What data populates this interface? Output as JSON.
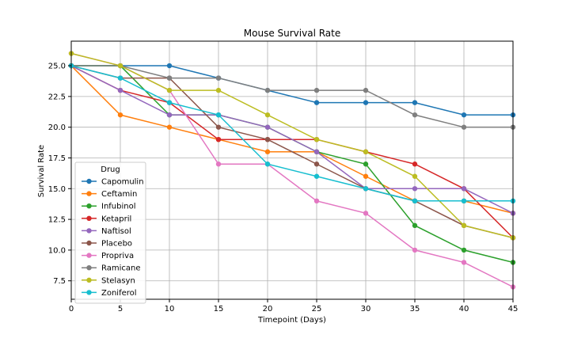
{
  "chart_data": {
    "type": "line",
    "title": "Mouse Survival Rate",
    "xlabel": "Timepoint (Days)",
    "ylabel": "Survival Rate",
    "xlim": [
      0,
      45
    ],
    "ylim": [
      6,
      27
    ],
    "x_ticks": [
      0,
      5,
      10,
      15,
      20,
      25,
      30,
      35,
      40,
      45
    ],
    "y_ticks": [
      7.5,
      10.0,
      12.5,
      15.0,
      17.5,
      20.0,
      22.5,
      25.0
    ],
    "y_tick_labels": [
      "7.5",
      "10.0",
      "12.5",
      "15.0",
      "17.5",
      "20.0",
      "22.5",
      "25.0"
    ],
    "grid": true,
    "legend_title": "Drug",
    "legend_position": "lower-left",
    "x": [
      0,
      5,
      10,
      15,
      20,
      25,
      30,
      35,
      40,
      45
    ],
    "series": [
      {
        "name": "Capomulin",
        "color": "#1f77b4",
        "values": [
          25,
          25,
          25,
          24,
          23,
          22,
          22,
          22,
          21,
          21
        ]
      },
      {
        "name": "Ceftamin",
        "color": "#ff7f0e",
        "values": [
          25,
          21,
          20,
          19,
          18,
          18,
          16,
          14,
          14,
          13
        ]
      },
      {
        "name": "Infubinol",
        "color": "#2ca02c",
        "values": [
          25,
          25,
          21,
          21,
          20,
          18,
          17,
          12,
          10,
          9
        ]
      },
      {
        "name": "Ketapril",
        "color": "#d62728",
        "values": [
          25,
          23,
          22,
          19,
          19,
          19,
          18,
          17,
          15,
          11
        ]
      },
      {
        "name": "Naftisol",
        "color": "#9467bd",
        "values": [
          25,
          23,
          21,
          21,
          20,
          18,
          15,
          15,
          15,
          13
        ]
      },
      {
        "name": "Placebo",
        "color": "#8c564b",
        "values": [
          25,
          24,
          24,
          20,
          19,
          17,
          15,
          14,
          12,
          11
        ]
      },
      {
        "name": "Propriva",
        "color": "#e377c2",
        "values": [
          26,
          25,
          23,
          17,
          17,
          14,
          13,
          10,
          9,
          7
        ]
      },
      {
        "name": "Ramicane",
        "color": "#7f7f7f",
        "values": [
          25,
          25,
          24,
          24,
          23,
          23,
          23,
          21,
          20,
          20
        ]
      },
      {
        "name": "Stelasyn",
        "color": "#bcbd22",
        "values": [
          26,
          25,
          23,
          23,
          21,
          19,
          18,
          16,
          12,
          11
        ]
      },
      {
        "name": "Zoniferol",
        "color": "#17becf",
        "values": [
          25,
          24,
          22,
          21,
          17,
          16,
          15,
          14,
          14,
          14
        ]
      }
    ]
  }
}
